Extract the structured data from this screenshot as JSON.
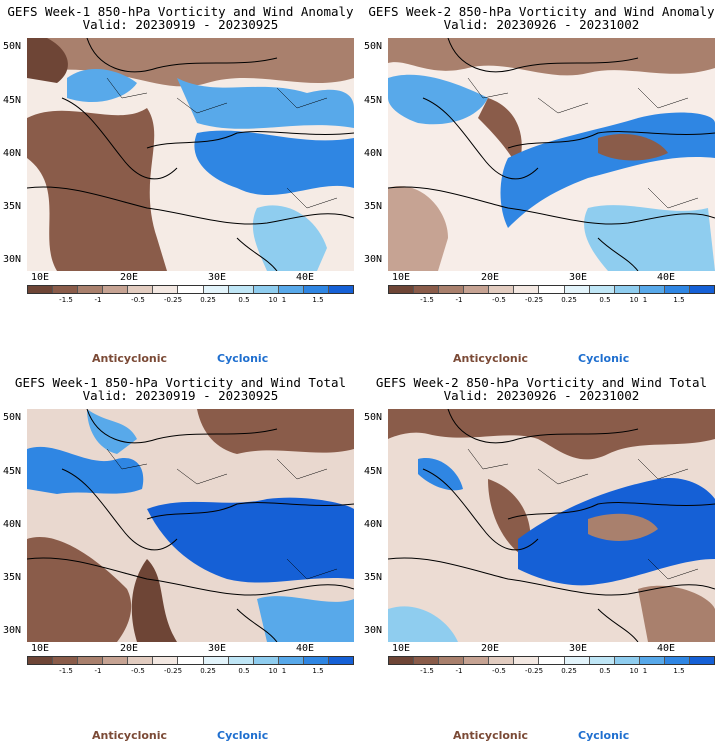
{
  "panels": [
    {
      "title_line1": "GEFS Week-1 850-hPa Vorticity and Wind Anomaly",
      "title_line2": "Valid: 20230919 - 20230925"
    },
    {
      "title_line1": "GEFS Week-2 850-hPa Vorticity and Wind Anomaly",
      "title_line2": "Valid: 20230926 - 20231002"
    },
    {
      "title_line1": "GEFS Week-1 850-hPa Vorticity and Wind Total",
      "title_line2": "Valid: 20230919 - 20230925"
    },
    {
      "title_line1": "GEFS Week-2 850-hPa Vorticity and Wind Total",
      "title_line2": "Valid: 20230926 - 20231002"
    }
  ],
  "axes": {
    "lat_labels": [
      "50N",
      "45N",
      "40N",
      "35N",
      "30N"
    ],
    "lon_labels": [
      "10E",
      "20E",
      "30E",
      "40E"
    ]
  },
  "colorbar": {
    "ticks": [
      "-1.5",
      "-1",
      "-0.5",
      "-0.25",
      "0.25",
      "0.5",
      "1",
      "1.5"
    ],
    "unit_marker": "10",
    "colors": [
      "#6e4536",
      "#8a5c4a",
      "#a9806d",
      "#c6a393",
      "#e2ccc0",
      "#f3e8e2",
      "#ffffff",
      "#e3f4fb",
      "#bfe6f6",
      "#8fcdef",
      "#58a9ea",
      "#2f86e3",
      "#1560d6"
    ]
  },
  "legend": {
    "anticyclonic_label": "Anticyclonic",
    "cyclonic_label": "Cyclonic"
  }
}
